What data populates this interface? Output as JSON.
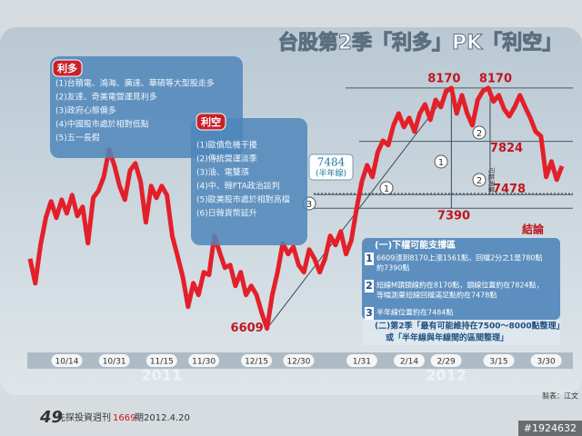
{
  "chart_data": {
    "type": "line",
    "title": "台股第2季「利多」PK「利空」",
    "series": [
      {
        "color": "#e3202a",
        "values": [
          7062,
          6903,
          7151,
          7328,
          7434,
          7328,
          7445,
          7357,
          7475,
          7339,
          7398,
          7163,
          7457,
          7504,
          7593,
          7769,
          7669,
          7534,
          7445,
          7634,
          7681,
          7563,
          7298,
          7534,
          7457,
          7534,
          7475,
          7210,
          7080,
          6945,
          6750,
          6903,
          6827,
          6974,
          6957,
          7210,
          7104,
          7004,
          7021,
          6886,
          6974,
          6827,
          6886,
          6827,
          6709,
          6609,
          6827,
          6974,
          7163,
          7092,
          7139,
          7021,
          6974,
          7121,
          7062,
          6974,
          7062,
          7210,
          7151,
          7239,
          7092,
          7180,
          7386,
          7563,
          7669,
          7593,
          7752,
          7828,
          7799,
          7928,
          8005,
          7917,
          7976,
          7887,
          8005,
          8064,
          7964,
          8093,
          8046,
          8152,
          8170,
          8005,
          8123,
          8005,
          7928,
          8093,
          8152,
          8170,
          8082,
          8123,
          8034,
          7987,
          8046,
          8123,
          8046,
          7976,
          7887,
          7858,
          7593,
          7693,
          7575,
          7663
        ]
      }
    ],
    "xlim": [
      0,
      101
    ],
    "ylim": [
      6200,
      8600
    ],
    "xticks": [
      {
        "value": 7,
        "label": "10/14"
      },
      {
        "value": 16,
        "label": "10/31"
      },
      {
        "value": 25,
        "label": "11/15"
      },
      {
        "value": 33,
        "label": "11/30"
      },
      {
        "value": 43,
        "label": "12/15"
      },
      {
        "value": 51,
        "label": "12/30"
      },
      {
        "value": 63,
        "label": "1/31"
      },
      {
        "value": 72,
        "label": "2/14"
      },
      {
        "value": 79,
        "label": "2/29"
      },
      {
        "value": 89,
        "label": "3/15"
      },
      {
        "value": 98,
        "label": "3/30"
      }
    ],
    "years": [
      {
        "value": 25,
        "label": "2011"
      },
      {
        "value": 79,
        "label": "2012"
      }
    ],
    "neckline": 7824,
    "measured_target": 7478,
    "half_retracement": 7390,
    "half_year_line": 7484,
    "half_year_label": "(半年線)",
    "measure_note": "可能測量",
    "markers": [
      "1",
      "1",
      "2",
      "2",
      "3"
    ],
    "bull": {
      "title": "利多",
      "items": [
        "(1)台積電、鴻海、廣達、華碩等大型股走多",
        "(2)友達、奇美電營運見利多",
        "(3)政府心態偏多",
        "(4)中國股市處於相對低點",
        "(5)五一長假"
      ]
    },
    "bear": {
      "title": "利空",
      "items": [
        "(1)歐債危機干擾",
        "(2)傳統營運淡季",
        "(3)油、電雙漲",
        "(4)中、韓FTA政治談判",
        "(5)歐美股市處於相對高檔",
        "(6)日韓貨幣延升"
      ]
    },
    "conclusion": {
      "title": "結論",
      "support_title": "(一)下檔可能支撐區",
      "support_items": [
        {
          "num": "1",
          "lines": [
            "6609漲到8170上漲1561點，回檔2分之1是780點",
            "約7390點"
          ]
        },
        {
          "num": "2",
          "lines": [
            "短線M頭頸線約在8170點，頸線位置約在7824點，",
            "等幅測量短線回檔滿足點約在7478點"
          ]
        },
        {
          "num": "3",
          "lines": [
            "半年線位置約在7484點"
          ]
        }
      ],
      "range_lines": [
        "(二)第2季「最有可能維持在7500～8000點整理」",
        "或「半年線與年線間的區間整理」"
      ]
    },
    "source": "製表：江文",
    "footer": {
      "page": "49",
      "publication": "先探投資週刊",
      "issue": "1669",
      "date": "期2012.4.20"
    },
    "watermark": "#1924632"
  }
}
